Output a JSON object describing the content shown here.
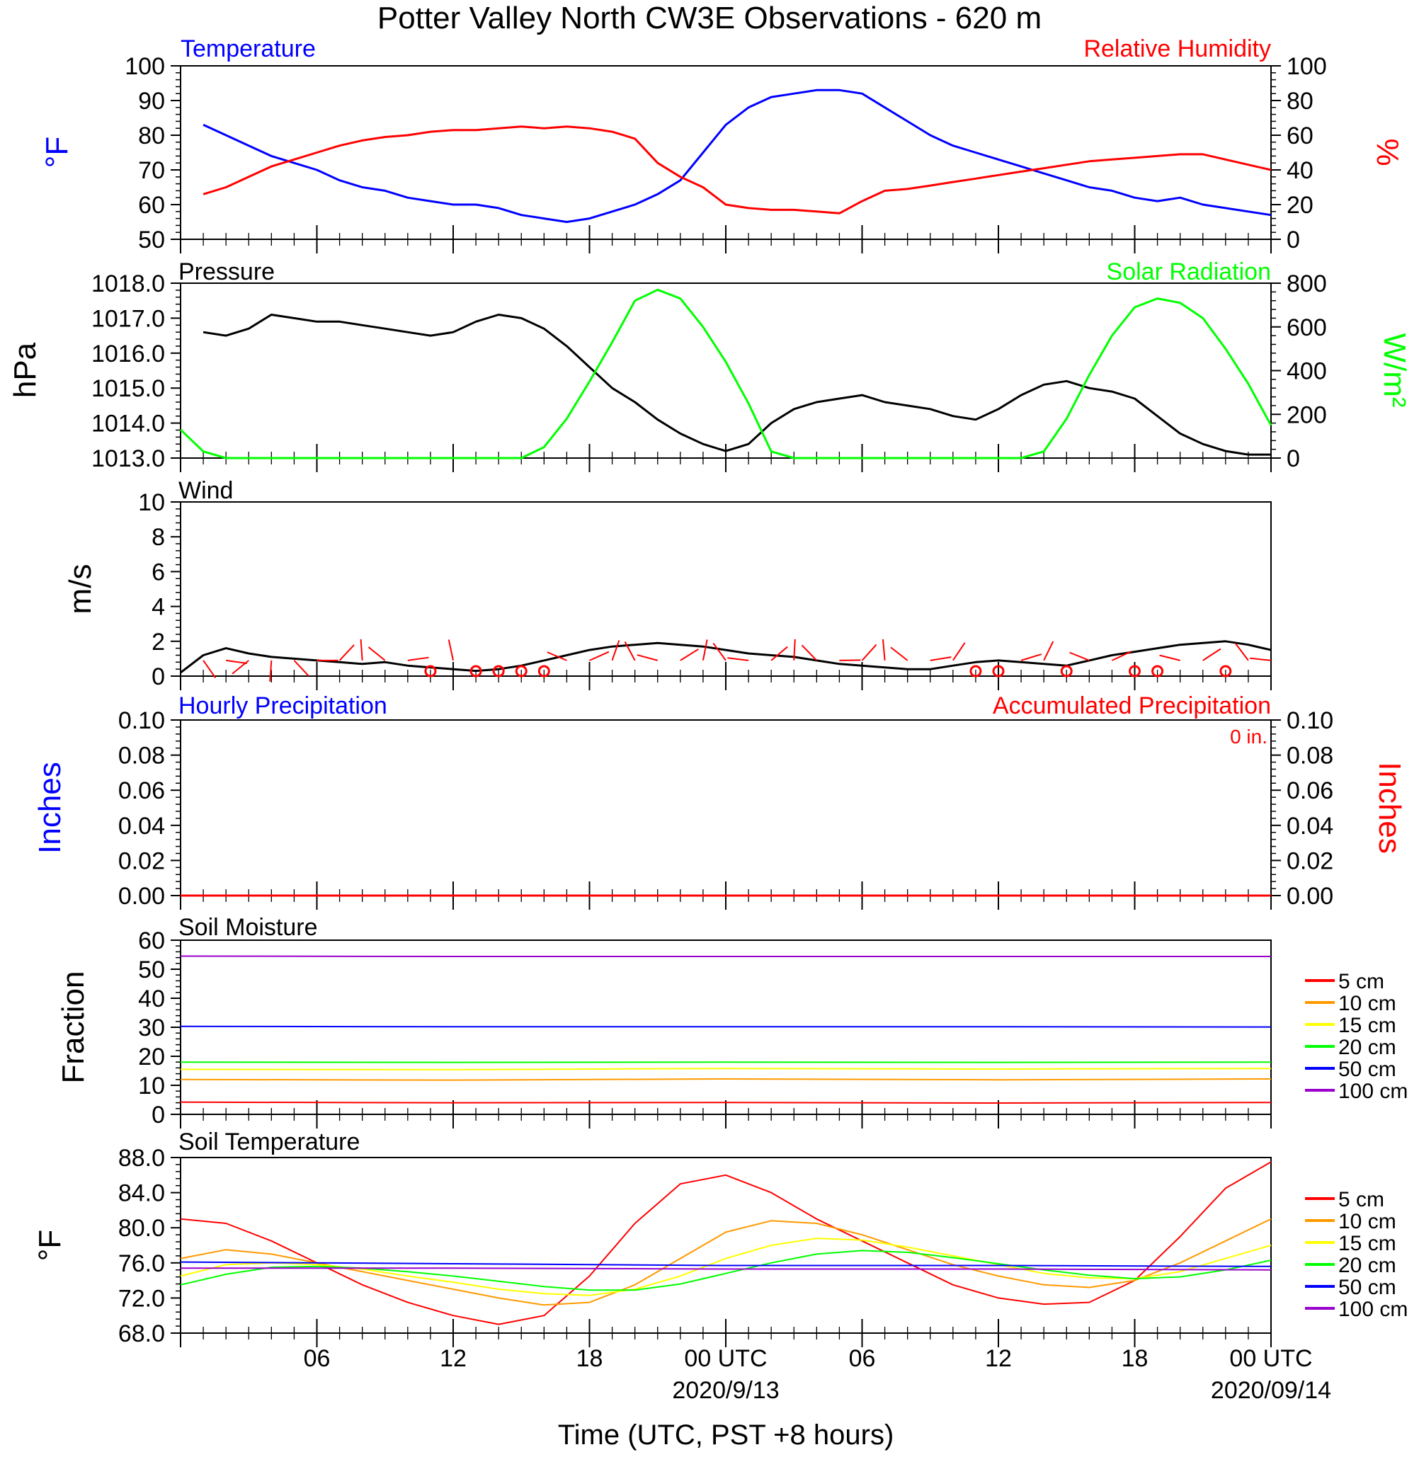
{
  "title": "Potter Valley North CW3E Observations - 620 m",
  "xlabel": "Time (UTC, PST +8 hours)",
  "time_axis": {
    "x_range_hours": [
      -6,
      42
    ],
    "tick_labels": [
      "06",
      "12",
      "18",
      "00 UTC",
      "06",
      "12",
      "18",
      "00 UTC"
    ],
    "tick_hours": [
      0,
      6,
      12,
      18,
      24,
      30,
      36,
      42
    ],
    "date_labels": [
      "2020/9/13",
      "2020/09/14"
    ],
    "date_hours": [
      18,
      42
    ]
  },
  "colors": {
    "blue": "#0000ff",
    "red": "#ff0000",
    "green": "#00ff00",
    "black": "#000000",
    "orange": "#ff9900",
    "yellow": "#ffff00",
    "purple": "#9900cc"
  },
  "soil_legend": [
    "5 cm",
    "10 cm",
    "15 cm",
    "20 cm",
    "50 cm",
    "100 cm"
  ],
  "chart_data": [
    {
      "type": "line",
      "panel": "temperature_humidity",
      "title_left": "Temperature",
      "title_right": "Relative Humidity",
      "ylabel_left": "°F",
      "ylabel_right": "%",
      "ylim_left": [
        50,
        100
      ],
      "ylim_right": [
        0,
        100
      ],
      "yticks_left": [
        "100",
        "90",
        "80",
        "70",
        "60",
        "50"
      ],
      "yticks_right": [
        "100",
        "80",
        "60",
        "40",
        "20",
        "0"
      ],
      "series": [
        {
          "name": "Temperature",
          "axis": "left",
          "color": "#0000ff",
          "x": [
            -5,
            -4,
            -3,
            -2,
            -1,
            0,
            1,
            2,
            3,
            4,
            5,
            6,
            7,
            8,
            9,
            10,
            11,
            12,
            13,
            14,
            15,
            16,
            17,
            18,
            19,
            20,
            21,
            22,
            23,
            24,
            25,
            26,
            27,
            28,
            29,
            30,
            31,
            32,
            33,
            34,
            35,
            36,
            37,
            38,
            39,
            40,
            41,
            42
          ],
          "y": [
            83,
            80,
            77,
            74,
            72,
            70,
            67,
            65,
            64,
            62,
            61,
            60,
            60,
            59,
            57,
            56,
            55,
            56,
            58,
            60,
            63,
            67,
            75,
            83,
            88,
            91,
            92,
            93,
            93,
            92,
            88,
            84,
            80,
            77,
            75,
            73,
            71,
            69,
            67,
            65,
            64,
            62,
            61,
            62,
            60,
            59,
            58,
            57
          ]
        },
        {
          "name": "Relative Humidity",
          "axis": "right",
          "color": "#ff0000",
          "x": [
            -5,
            -4,
            -3,
            -2,
            -1,
            0,
            1,
            2,
            3,
            4,
            5,
            6,
            7,
            8,
            9,
            10,
            11,
            12,
            13,
            14,
            15,
            16,
            17,
            18,
            19,
            20,
            21,
            22,
            23,
            24,
            25,
            26,
            27,
            28,
            29,
            30,
            31,
            32,
            33,
            34,
            35,
            36,
            37,
            38,
            39,
            40,
            41,
            42
          ],
          "y": [
            26,
            30,
            36,
            42,
            46,
            50,
            54,
            57,
            59,
            60,
            62,
            63,
            63,
            64,
            65,
            64,
            65,
            64,
            62,
            58,
            44,
            36,
            30,
            20,
            18,
            17,
            17,
            16,
            15,
            22,
            28,
            29,
            31,
            33,
            35,
            37,
            39,
            41,
            43,
            45,
            46,
            47,
            48,
            49,
            49,
            46,
            43,
            40
          ]
        }
      ]
    },
    {
      "type": "line",
      "panel": "pressure_solar",
      "title_left": "Pressure",
      "title_right": "Solar Radiation",
      "ylabel_left": "hPa",
      "ylabel_right": "W/m²",
      "ylim_left": [
        1013.0,
        1018.0
      ],
      "ylim_right": [
        0,
        800
      ],
      "yticks_left": [
        "1018.0",
        "1017.0",
        "1016.0",
        "1015.0",
        "1014.0",
        "1013.0"
      ],
      "yticks_right": [
        "800",
        "600",
        "400",
        "200",
        "0"
      ],
      "series": [
        {
          "name": "Pressure",
          "axis": "left",
          "color": "#000000",
          "x": [
            -5,
            -4,
            -3,
            -2,
            -1,
            0,
            1,
            2,
            3,
            4,
            5,
            6,
            7,
            8,
            9,
            10,
            11,
            12,
            13,
            14,
            15,
            16,
            17,
            18,
            19,
            20,
            21,
            22,
            23,
            24,
            25,
            26,
            27,
            28,
            29,
            30,
            31,
            32,
            33,
            34,
            35,
            36,
            37,
            38,
            39,
            40,
            41,
            42
          ],
          "y": [
            1016.6,
            1016.5,
            1016.7,
            1017.1,
            1017.0,
            1016.9,
            1016.9,
            1016.8,
            1016.7,
            1016.6,
            1016.5,
            1016.6,
            1016.9,
            1017.1,
            1017.0,
            1016.7,
            1016.2,
            1015.6,
            1015.0,
            1014.6,
            1014.1,
            1013.7,
            1013.4,
            1013.2,
            1013.4,
            1014.0,
            1014.4,
            1014.6,
            1014.7,
            1014.8,
            1014.6,
            1014.5,
            1014.4,
            1014.2,
            1014.1,
            1014.4,
            1014.8,
            1015.1,
            1015.2,
            1015.0,
            1014.9,
            1014.7,
            1014.2,
            1013.7,
            1013.4,
            1013.2,
            1013.1,
            1013.1
          ]
        },
        {
          "name": "Solar Radiation",
          "axis": "right",
          "color": "#00ff00",
          "x": [
            -6,
            -5,
            -4,
            -3,
            -2,
            -1,
            0,
            1,
            2,
            3,
            4,
            5,
            6,
            7,
            8,
            9,
            10,
            11,
            12,
            13,
            14,
            15,
            16,
            17,
            18,
            19,
            20,
            21,
            22,
            23,
            24,
            25,
            26,
            27,
            28,
            29,
            30,
            31,
            32,
            33,
            34,
            35,
            36,
            37,
            38,
            39,
            40,
            41,
            42
          ],
          "y": [
            130,
            30,
            0,
            0,
            0,
            0,
            0,
            0,
            0,
            0,
            0,
            0,
            0,
            0,
            0,
            0,
            50,
            180,
            350,
            530,
            720,
            770,
            730,
            600,
            440,
            250,
            30,
            0,
            0,
            0,
            0,
            0,
            0,
            0,
            0,
            0,
            0,
            0,
            30,
            180,
            380,
            560,
            690,
            730,
            710,
            640,
            500,
            340,
            150
          ]
        }
      ]
    },
    {
      "type": "line",
      "panel": "wind",
      "title": "Wind",
      "ylabel": "m/s",
      "ylim": [
        0,
        10
      ],
      "yticks": [
        "10",
        "8",
        "6",
        "4",
        "2",
        "0"
      ],
      "series": [
        {
          "name": "Wind",
          "color": "#000000",
          "x": [
            -6,
            -5,
            -4,
            -3,
            -2,
            -1,
            0,
            1,
            2,
            3,
            4,
            5,
            6,
            7,
            8,
            9,
            10,
            11,
            12,
            13,
            14,
            15,
            16,
            17,
            18,
            19,
            20,
            21,
            22,
            23,
            24,
            25,
            26,
            27,
            28,
            29,
            30,
            31,
            32,
            33,
            34,
            35,
            36,
            37,
            38,
            39,
            40,
            41,
            42
          ],
          "y": [
            0.2,
            1.2,
            1.6,
            1.3,
            1.1,
            1.0,
            0.9,
            0.8,
            0.7,
            0.8,
            0.6,
            0.5,
            0.4,
            0.3,
            0.4,
            0.6,
            0.9,
            1.2,
            1.5,
            1.7,
            1.8,
            1.9,
            1.8,
            1.7,
            1.5,
            1.3,
            1.2,
            1.1,
            0.9,
            0.7,
            0.6,
            0.5,
            0.4,
            0.4,
            0.6,
            0.8,
            0.9,
            0.8,
            0.7,
            0.6,
            0.9,
            1.2,
            1.4,
            1.6,
            1.8,
            1.9,
            2.0,
            1.8,
            1.5
          ]
        }
      ]
    },
    {
      "type": "line",
      "panel": "precipitation",
      "title_left": "Hourly Precipitation",
      "title_right": "Accumulated Precipitation",
      "annotation": "0 in.",
      "ylabel_left": "Inches",
      "ylabel_right": "Inches",
      "ylim_left": [
        0,
        0.1
      ],
      "ylim_right": [
        0,
        0.1
      ],
      "yticks_left": [
        "0.10",
        "0.08",
        "0.06",
        "0.04",
        "0.02",
        "0.00"
      ],
      "yticks_right": [
        "0.10",
        "0.08",
        "0.06",
        "0.04",
        "0.02",
        "0.00"
      ],
      "series": [
        {
          "name": "Hourly Precipitation",
          "color": "#0000ff",
          "x": [
            -6,
            42
          ],
          "y": [
            0,
            0
          ]
        },
        {
          "name": "Accumulated Precipitation",
          "color": "#ff0000",
          "x": [
            -6,
            42
          ],
          "y": [
            0,
            0
          ]
        }
      ]
    },
    {
      "type": "line",
      "panel": "soil_moisture",
      "title": "Soil Moisture",
      "ylabel": "Fraction",
      "ylim": [
        0,
        60
      ],
      "yticks": [
        "60",
        "50",
        "40",
        "30",
        "20",
        "10",
        "0"
      ],
      "series": [
        {
          "name": "5 cm",
          "color": "#ff0000",
          "x": [
            -6,
            6,
            18,
            30,
            42
          ],
          "y": [
            4.2,
            4.0,
            4.1,
            3.9,
            4.1
          ]
        },
        {
          "name": "10 cm",
          "color": "#ff9900",
          "x": [
            -6,
            6,
            18,
            30,
            42
          ],
          "y": [
            12.0,
            11.8,
            12.2,
            11.9,
            12.2
          ]
        },
        {
          "name": "15 cm",
          "color": "#ffff00",
          "x": [
            -6,
            6,
            18,
            30,
            42
          ],
          "y": [
            15.5,
            15.4,
            15.8,
            15.6,
            15.8
          ]
        },
        {
          "name": "20 cm",
          "color": "#00ff00",
          "x": [
            -6,
            6,
            18,
            30,
            42
          ],
          "y": [
            18.0,
            17.9,
            18.0,
            17.9,
            18.0
          ]
        },
        {
          "name": "50 cm",
          "color": "#0000ff",
          "x": [
            -6,
            6,
            18,
            30,
            42
          ],
          "y": [
            30.3,
            30.2,
            30.2,
            30.2,
            30.1
          ]
        },
        {
          "name": "100 cm",
          "color": "#9900cc",
          "x": [
            -6,
            6,
            18,
            30,
            42
          ],
          "y": [
            54.5,
            54.4,
            54.4,
            54.4,
            54.4
          ]
        }
      ]
    },
    {
      "type": "line",
      "panel": "soil_temperature",
      "title": "Soil Temperature",
      "ylabel": "°F",
      "ylim": [
        68.0,
        88.0
      ],
      "yticks": [
        "88.0",
        "84.0",
        "80.0",
        "76.0",
        "72.0",
        "68.0"
      ],
      "series": [
        {
          "name": "5 cm",
          "color": "#ff0000",
          "x": [
            -6,
            -4,
            -2,
            0,
            2,
            4,
            6,
            8,
            10,
            12,
            14,
            16,
            18,
            20,
            22,
            24,
            26,
            28,
            30,
            32,
            34,
            36,
            38,
            40,
            42
          ],
          "y": [
            81.0,
            80.5,
            78.5,
            76.0,
            73.5,
            71.5,
            70.0,
            69.0,
            70.0,
            74.5,
            80.5,
            85.0,
            86.0,
            84.0,
            81.0,
            78.5,
            76.0,
            73.5,
            72.0,
            71.3,
            71.5,
            74.0,
            79.0,
            84.5,
            87.5
          ]
        },
        {
          "name": "10 cm",
          "color": "#ff9900",
          "x": [
            -6,
            -4,
            -2,
            0,
            2,
            4,
            6,
            8,
            10,
            12,
            14,
            16,
            18,
            20,
            22,
            24,
            26,
            28,
            30,
            32,
            34,
            36,
            38,
            40,
            42
          ],
          "y": [
            76.5,
            77.5,
            77.0,
            76.0,
            75.0,
            74.0,
            73.0,
            72.0,
            71.2,
            71.5,
            73.5,
            76.5,
            79.5,
            80.8,
            80.5,
            79.2,
            77.5,
            75.8,
            74.5,
            73.5,
            73.2,
            74.0,
            76.0,
            78.5,
            81.0
          ]
        },
        {
          "name": "15 cm",
          "color": "#ffff00",
          "x": [
            -6,
            -4,
            -2,
            0,
            2,
            4,
            6,
            8,
            10,
            12,
            14,
            16,
            18,
            20,
            22,
            24,
            26,
            28,
            30,
            32,
            34,
            36,
            38,
            40,
            42
          ],
          "y": [
            74.5,
            75.8,
            76.0,
            75.8,
            75.3,
            74.5,
            73.8,
            73.0,
            72.5,
            72.3,
            73.0,
            74.5,
            76.5,
            78.0,
            78.8,
            78.6,
            77.8,
            76.8,
            75.8,
            74.8,
            74.3,
            74.2,
            75.0,
            76.5,
            78.0
          ]
        },
        {
          "name": "20 cm",
          "color": "#00ff00",
          "x": [
            -6,
            -4,
            -2,
            0,
            2,
            4,
            6,
            8,
            10,
            12,
            14,
            16,
            18,
            20,
            22,
            24,
            26,
            28,
            30,
            32,
            34,
            36,
            38,
            40,
            42
          ],
          "y": [
            73.5,
            74.7,
            75.5,
            75.6,
            75.4,
            75.0,
            74.5,
            73.9,
            73.3,
            72.9,
            72.9,
            73.6,
            74.8,
            76.0,
            77.0,
            77.4,
            77.2,
            76.6,
            75.9,
            75.2,
            74.6,
            74.2,
            74.4,
            75.2,
            76.3
          ]
        },
        {
          "name": "50 cm",
          "color": "#0000ff",
          "x": [
            -6,
            6,
            18,
            30,
            42
          ],
          "y": [
            76.1,
            75.9,
            75.7,
            75.7,
            75.6
          ]
        },
        {
          "name": "100 cm",
          "color": "#9900cc",
          "x": [
            -6,
            6,
            18,
            30,
            42
          ],
          "y": [
            75.4,
            75.4,
            75.3,
            75.3,
            75.2
          ]
        }
      ]
    }
  ]
}
